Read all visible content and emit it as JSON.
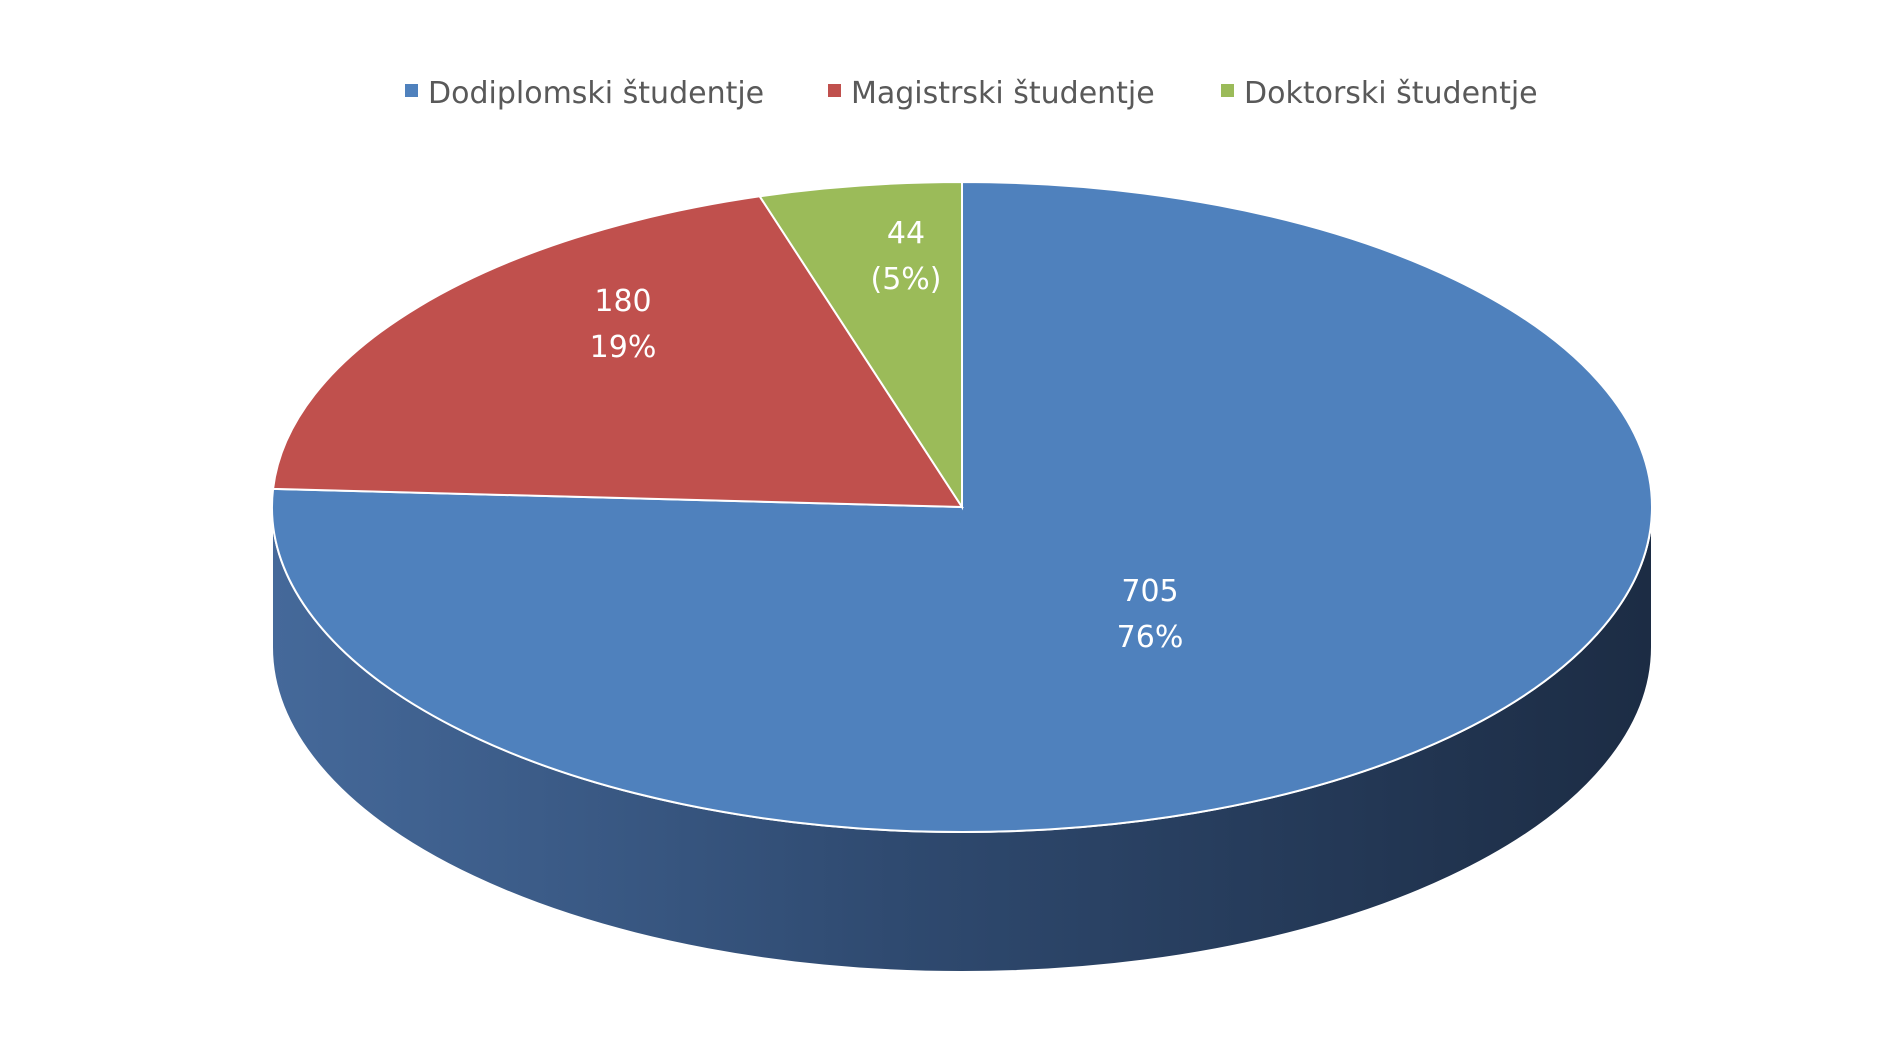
{
  "chart_data": {
    "type": "pie",
    "style": "3d",
    "title": "",
    "categories": [
      "Dodiplomski študentje",
      "Magistrski študentje",
      "Doktorski študentje"
    ],
    "values": [
      705,
      180,
      44
    ],
    "value_labels": [
      "705",
      "180",
      "44"
    ],
    "percent_labels": [
      "76%",
      "19%",
      "(5%)"
    ],
    "colors": [
      "#4F81BD",
      "#C0504D",
      "#9BBB59"
    ],
    "legend_position": "top"
  }
}
